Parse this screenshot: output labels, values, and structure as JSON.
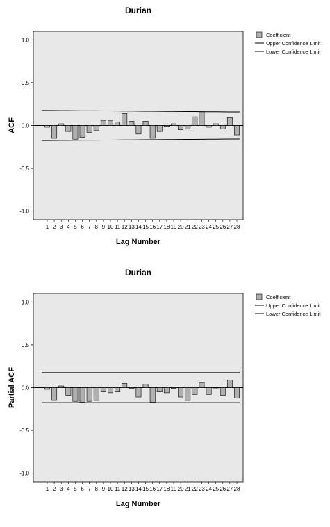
{
  "legend": {
    "coefficient": "Coefficient",
    "upper": "Upper Confidence Limit",
    "lower": "Lower Confidence Limit"
  },
  "chart_data": [
    {
      "type": "bar",
      "title": "Durian",
      "xlabel": "Lag Number",
      "ylabel": "ACF",
      "ylim": [
        -1.1,
        1.1
      ],
      "yticks": [
        -1.0,
        -0.5,
        0.0,
        0.5,
        1.0
      ],
      "ytick_labels": [
        "-1.0",
        "-0.5",
        "0.0",
        "0.5",
        "1.0"
      ],
      "categories": [
        "1",
        "2",
        "3",
        "4",
        "5",
        "6",
        "7",
        "8",
        "9",
        "10",
        "11",
        "12",
        "13",
        "14",
        "15",
        "16",
        "17",
        "18",
        "19",
        "20",
        "21",
        "22",
        "23",
        "24",
        "25",
        "26",
        "27",
        "28"
      ],
      "series": [
        {
          "name": "Coefficient",
          "values": [
            -0.02,
            -0.15,
            0.02,
            -0.07,
            -0.16,
            -0.14,
            -0.08,
            -0.06,
            0.06,
            0.06,
            0.04,
            0.14,
            0.05,
            -0.1,
            0.05,
            -0.15,
            -0.07,
            -0.01,
            0.02,
            -0.05,
            -0.04,
            0.1,
            0.16,
            -0.02,
            0.02,
            -0.04,
            0.09,
            -0.11
          ]
        },
        {
          "name": "Upper Confidence Limit",
          "values": [
            0.176,
            0.175,
            0.174,
            0.174,
            0.173,
            0.172,
            0.172,
            0.171,
            0.17,
            0.17,
            0.169,
            0.168,
            0.168,
            0.167,
            0.166,
            0.166,
            0.165,
            0.164,
            0.164,
            0.163,
            0.162,
            0.162,
            0.161,
            0.16,
            0.16,
            0.159,
            0.158,
            0.158
          ]
        },
        {
          "name": "Lower Confidence Limit",
          "values": [
            -0.176,
            -0.175,
            -0.174,
            -0.174,
            -0.173,
            -0.172,
            -0.172,
            -0.171,
            -0.17,
            -0.17,
            -0.169,
            -0.168,
            -0.168,
            -0.167,
            -0.166,
            -0.166,
            -0.165,
            -0.164,
            -0.164,
            -0.163,
            -0.162,
            -0.162,
            -0.161,
            -0.16,
            -0.16,
            -0.159,
            -0.158,
            -0.158
          ]
        }
      ],
      "legend_position": "top-right",
      "grid": false
    },
    {
      "type": "bar",
      "title": "Durian",
      "xlabel": "Lag Number",
      "ylabel": "Partial ACF",
      "ylim": [
        -1.1,
        1.1
      ],
      "yticks": [
        -1.0,
        -0.5,
        0.0,
        0.5,
        1.0
      ],
      "ytick_labels": [
        "-1.0",
        "-0.5",
        "0.0",
        "0.5",
        "1.0"
      ],
      "categories": [
        "1",
        "2",
        "3",
        "4",
        "5",
        "6",
        "7",
        "8",
        "9",
        "10",
        "11",
        "12",
        "13",
        "14",
        "15",
        "16",
        "17",
        "18",
        "19",
        "20",
        "21",
        "22",
        "23",
        "24",
        "25",
        "26",
        "27",
        "28"
      ],
      "series": [
        {
          "name": "Coefficient",
          "values": [
            -0.02,
            -0.15,
            0.02,
            -0.09,
            -0.16,
            -0.17,
            -0.16,
            -0.15,
            -0.05,
            -0.06,
            -0.05,
            0.05,
            -0.01,
            -0.11,
            0.04,
            -0.17,
            -0.05,
            -0.06,
            -0.01,
            -0.11,
            -0.15,
            -0.08,
            0.06,
            -0.08,
            0.0,
            -0.09,
            0.09,
            -0.12
          ]
        },
        {
          "name": "Upper Confidence Limit",
          "values": [
            0.176,
            0.176,
            0.176,
            0.176,
            0.176,
            0.176,
            0.176,
            0.176,
            0.176,
            0.176,
            0.176,
            0.176,
            0.176,
            0.176,
            0.176,
            0.176,
            0.176,
            0.176,
            0.176,
            0.176,
            0.176,
            0.176,
            0.176,
            0.176,
            0.176,
            0.176,
            0.176,
            0.176
          ]
        },
        {
          "name": "Lower Confidence Limit",
          "values": [
            -0.176,
            -0.176,
            -0.176,
            -0.176,
            -0.176,
            -0.176,
            -0.176,
            -0.176,
            -0.176,
            -0.176,
            -0.176,
            -0.176,
            -0.176,
            -0.176,
            -0.176,
            -0.176,
            -0.176,
            -0.176,
            -0.176,
            -0.176,
            -0.176,
            -0.176,
            -0.176,
            -0.176,
            -0.176,
            -0.176,
            -0.176,
            -0.176
          ]
        }
      ],
      "legend_position": "top-right",
      "grid": false
    }
  ],
  "colors": {
    "plot_background": "#e8e8e8",
    "bar_fill": "#b0b0b0",
    "bar_stroke": "#000000",
    "line": "#000000"
  }
}
